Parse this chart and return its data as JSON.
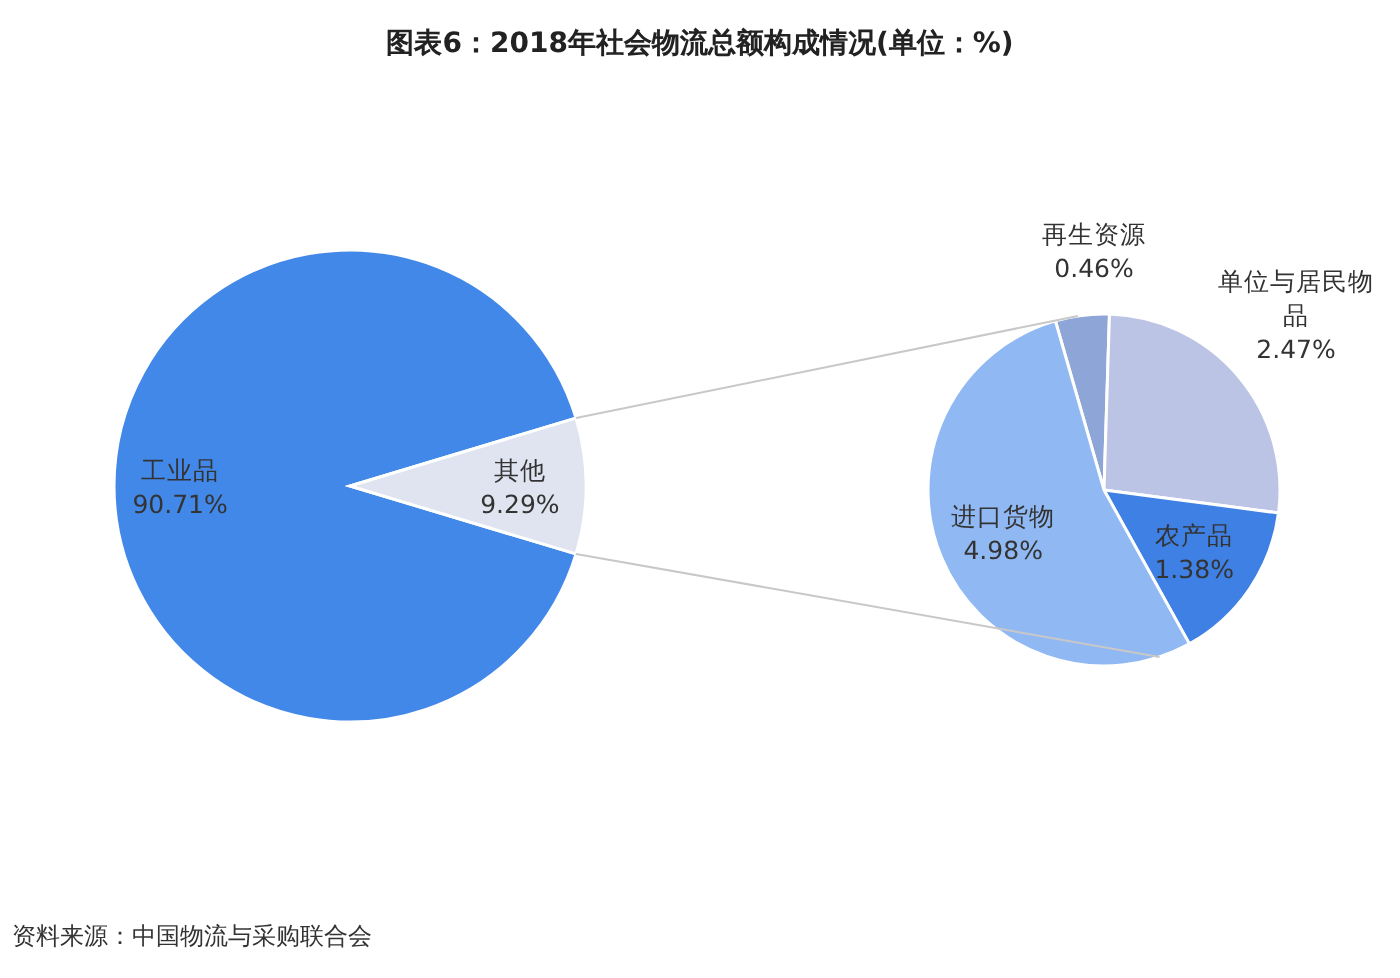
{
  "chart_data": [
    {
      "type": "pie",
      "title": "图表6：2018年社会物流总额构成情况(单位：%)",
      "annotations": [
        "资料来源：中国物流与采购联合会"
      ],
      "categories": [
        "工业品",
        "其他"
      ],
      "values": [
        90.71,
        9.29
      ],
      "value_labels": [
        "90.71%",
        "9.29%"
      ],
      "colors": [
        "#4288e8",
        "#dfe4f0"
      ]
    },
    {
      "type": "pie",
      "categories": [
        "再生资源",
        "单位与居民物品",
        "农产品",
        "进口货物"
      ],
      "values": [
        0.46,
        2.47,
        1.38,
        4.98
      ],
      "value_labels": [
        "0.46%",
        "2.47%",
        "1.38%",
        "4.98%"
      ],
      "colors": [
        "#8ea5d8",
        "#bcc4e6",
        "#3f80e4",
        "#90b9f4"
      ]
    }
  ]
}
